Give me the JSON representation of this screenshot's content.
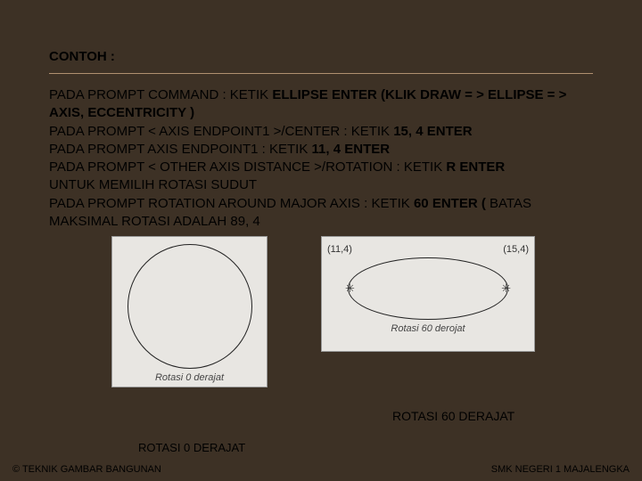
{
  "title": "CONTOH :",
  "lines": {
    "l1a": "PADA PROMPT COMMAND : KETIK ",
    "l1b": "ELLIPSE ENTER (KLIK DRAW = > ELLIPSE = > AXIS, ECCENTRICITY )",
    "l2a": "PADA PROMPT < AXIS ENDPOINT1 >/CENTER : KETIK ",
    "l2b": "15, 4 ENTER",
    "l3a": "PADA PROMPT AXIS ENDPOINT1 : KETIK ",
    "l3b": "11, 4 ENTER",
    "l4a": "PADA PROMPT < OTHER AXIS DISTANCE >/ROTATION : KETIK ",
    "l4b": "R ENTER",
    "l5": "UNTUK MEMILIH ROTASI SUDUT",
    "l6a": "PADA PROMPT ROTATION AROUND MAJOR AXIS : KETIK ",
    "l6b": "60 ENTER ( ",
    "l6c": "BATAS MAKSIMAL ROTASI ADALAH 89, 4"
  },
  "figA": {
    "innerLabel": "Rotasi 0 derajat",
    "caption": "ROTASI 0 DERAJAT"
  },
  "figB": {
    "coordLeft": "(11,4)",
    "coordRight": "(15,4)",
    "markerL": "✳",
    "markerR": "✳",
    "innerLabel": "Rotasi 60 derojat",
    "caption": "ROTASI 60 DERAJAT"
  },
  "footer": {
    "left": "© TEKNIK GAMBAR BANGUNAN",
    "right": "SMK NEGERI 1 MAJALENGKA"
  },
  "colors": {
    "background": "#3d3125",
    "figBg": "#e8e6e2",
    "text": "#000000"
  }
}
